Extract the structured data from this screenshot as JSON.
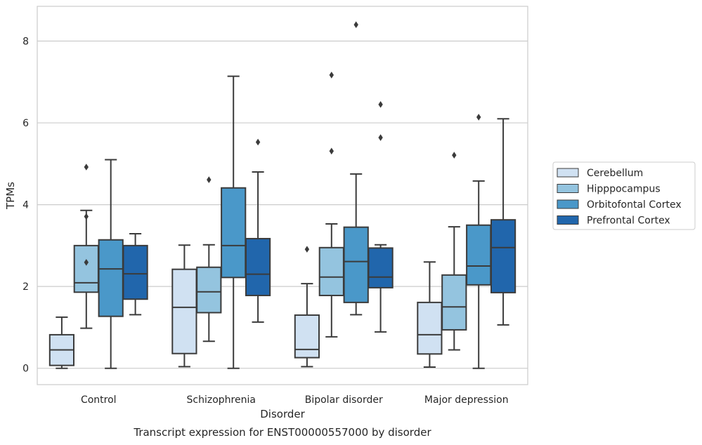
{
  "chart_data": {
    "type": "box",
    "title": "",
    "xlabel": "Disorder",
    "ylabel": "TPMs",
    "caption": "Transcript expression for ENST00000557000 by disorder",
    "ylim": [
      -0.4,
      8.85
    ],
    "yticks": [
      0,
      2,
      4,
      6,
      8
    ],
    "grid": true,
    "legend_position": "right",
    "categories": [
      "Control",
      "Schizophrenia",
      "Bipolar disorder",
      "Major depression"
    ],
    "series": [
      {
        "name": "Cerebellum",
        "color": "#d0e1f2",
        "boxes": [
          {
            "whisker_low": 0.0,
            "q1": 0.07,
            "median": 0.45,
            "q3": 0.82,
            "whisker_high": 1.25,
            "outliers": []
          },
          {
            "whisker_low": 0.04,
            "q1": 0.36,
            "median": 1.49,
            "q3": 2.42,
            "whisker_high": 3.01,
            "outliers": []
          },
          {
            "whisker_low": 0.04,
            "q1": 0.26,
            "median": 0.46,
            "q3": 1.3,
            "whisker_high": 2.07,
            "outliers": [
              2.91
            ]
          },
          {
            "whisker_low": 0.03,
            "q1": 0.35,
            "median": 0.82,
            "q3": 1.61,
            "whisker_high": 2.6,
            "outliers": []
          }
        ]
      },
      {
        "name": "Hipppocampus",
        "color": "#94c4df",
        "boxes": [
          {
            "whisker_low": 0.98,
            "q1": 1.86,
            "median": 2.09,
            "q3": 3.0,
            "whisker_high": 3.86,
            "outliers": [
              3.71,
              2.59,
              4.92
            ]
          },
          {
            "whisker_low": 0.66,
            "q1": 1.36,
            "median": 1.87,
            "q3": 2.47,
            "whisker_high": 3.02,
            "outliers": [
              4.61
            ]
          },
          {
            "whisker_low": 0.77,
            "q1": 1.78,
            "median": 2.23,
            "q3": 2.95,
            "whisker_high": 3.53,
            "outliers": [
              7.17,
              5.31
            ]
          },
          {
            "whisker_low": 0.45,
            "q1": 0.94,
            "median": 1.5,
            "q3": 2.28,
            "whisker_high": 3.46,
            "outliers": [
              5.21
            ]
          }
        ]
      },
      {
        "name": "Orbitofontal Cortex",
        "color": "#4a98c9",
        "boxes": [
          {
            "whisker_low": 0.0,
            "q1": 1.27,
            "median": 2.43,
            "q3": 3.14,
            "whisker_high": 5.1,
            "outliers": []
          },
          {
            "whisker_low": 0.0,
            "q1": 2.22,
            "median": 3.0,
            "q3": 4.41,
            "whisker_high": 7.14,
            "outliers": []
          },
          {
            "whisker_low": 1.31,
            "q1": 1.61,
            "median": 2.61,
            "q3": 3.45,
            "whisker_high": 4.75,
            "outliers": [
              8.4
            ]
          },
          {
            "whisker_low": 0.0,
            "q1": 2.04,
            "median": 2.5,
            "q3": 3.5,
            "whisker_high": 4.58,
            "outliers": [
              6.14
            ]
          }
        ]
      },
      {
        "name": "Prefrontal Cortex",
        "color": "#2166ac",
        "boxes": [
          {
            "whisker_low": 1.31,
            "q1": 1.69,
            "median": 2.31,
            "q3": 3.0,
            "whisker_high": 3.29,
            "outliers": []
          },
          {
            "whisker_low": 1.13,
            "q1": 1.78,
            "median": 2.3,
            "q3": 3.17,
            "whisker_high": 4.8,
            "outliers": [
              5.53
            ]
          },
          {
            "whisker_low": 0.89,
            "q1": 1.97,
            "median": 2.23,
            "q3": 2.94,
            "whisker_high": 3.02,
            "outliers": [
              6.45,
              5.64
            ]
          },
          {
            "whisker_low": 1.06,
            "q1": 1.85,
            "median": 2.95,
            "q3": 3.63,
            "whisker_high": 6.1,
            "outliers": []
          }
        ]
      }
    ]
  }
}
